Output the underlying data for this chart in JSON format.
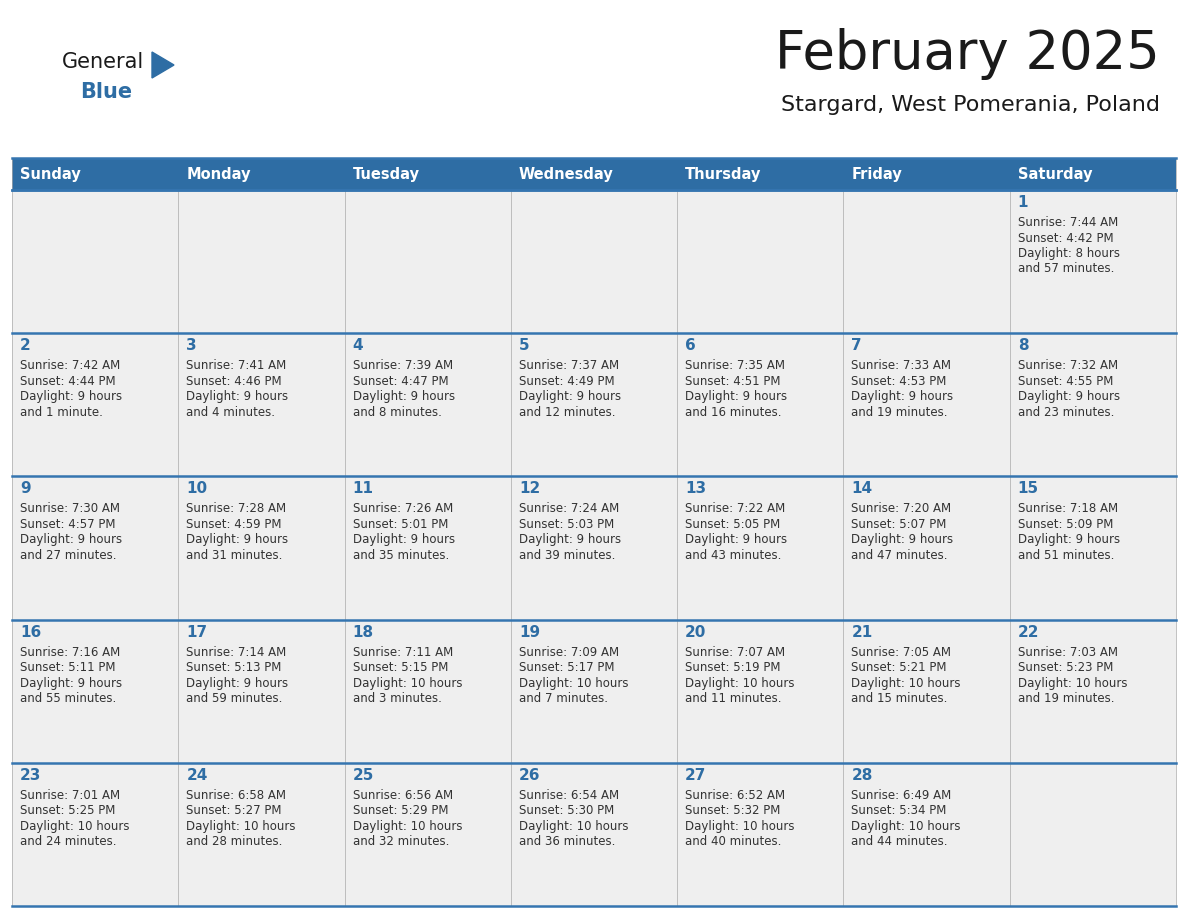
{
  "title": "February 2025",
  "subtitle": "Stargard, West Pomerania, Poland",
  "days_of_week": [
    "Sunday",
    "Monday",
    "Tuesday",
    "Wednesday",
    "Thursday",
    "Friday",
    "Saturday"
  ],
  "header_bg": "#2E6DA4",
  "header_text": "#FFFFFF",
  "cell_bg": "#EFEFEF",
  "cell_border": "#AAAAAA",
  "row_line_color": "#3575B0",
  "day_number_color": "#2E6DA4",
  "text_color": "#333333",
  "title_color": "#1a1a1a",
  "logo_general_color": "#1a1a1a",
  "logo_blue_color": "#2E6DA4",
  "fig_width": 11.88,
  "fig_height": 9.18,
  "dpi": 100,
  "calendar": [
    [
      null,
      null,
      null,
      null,
      null,
      null,
      {
        "day": "1",
        "sunrise": "7:44 AM",
        "sunset": "4:42 PM",
        "daylight": "8 hours",
        "daylight2": "and 57 minutes."
      }
    ],
    [
      {
        "day": "2",
        "sunrise": "7:42 AM",
        "sunset": "4:44 PM",
        "daylight": "9 hours",
        "daylight2": "and 1 minute."
      },
      {
        "day": "3",
        "sunrise": "7:41 AM",
        "sunset": "4:46 PM",
        "daylight": "9 hours",
        "daylight2": "and 4 minutes."
      },
      {
        "day": "4",
        "sunrise": "7:39 AM",
        "sunset": "4:47 PM",
        "daylight": "9 hours",
        "daylight2": "and 8 minutes."
      },
      {
        "day": "5",
        "sunrise": "7:37 AM",
        "sunset": "4:49 PM",
        "daylight": "9 hours",
        "daylight2": "and 12 minutes."
      },
      {
        "day": "6",
        "sunrise": "7:35 AM",
        "sunset": "4:51 PM",
        "daylight": "9 hours",
        "daylight2": "and 16 minutes."
      },
      {
        "day": "7",
        "sunrise": "7:33 AM",
        "sunset": "4:53 PM",
        "daylight": "9 hours",
        "daylight2": "and 19 minutes."
      },
      {
        "day": "8",
        "sunrise": "7:32 AM",
        "sunset": "4:55 PM",
        "daylight": "9 hours",
        "daylight2": "and 23 minutes."
      }
    ],
    [
      {
        "day": "9",
        "sunrise": "7:30 AM",
        "sunset": "4:57 PM",
        "daylight": "9 hours",
        "daylight2": "and 27 minutes."
      },
      {
        "day": "10",
        "sunrise": "7:28 AM",
        "sunset": "4:59 PM",
        "daylight": "9 hours",
        "daylight2": "and 31 minutes."
      },
      {
        "day": "11",
        "sunrise": "7:26 AM",
        "sunset": "5:01 PM",
        "daylight": "9 hours",
        "daylight2": "and 35 minutes."
      },
      {
        "day": "12",
        "sunrise": "7:24 AM",
        "sunset": "5:03 PM",
        "daylight": "9 hours",
        "daylight2": "and 39 minutes."
      },
      {
        "day": "13",
        "sunrise": "7:22 AM",
        "sunset": "5:05 PM",
        "daylight": "9 hours",
        "daylight2": "and 43 minutes."
      },
      {
        "day": "14",
        "sunrise": "7:20 AM",
        "sunset": "5:07 PM",
        "daylight": "9 hours",
        "daylight2": "and 47 minutes."
      },
      {
        "day": "15",
        "sunrise": "7:18 AM",
        "sunset": "5:09 PM",
        "daylight": "9 hours",
        "daylight2": "and 51 minutes."
      }
    ],
    [
      {
        "day": "16",
        "sunrise": "7:16 AM",
        "sunset": "5:11 PM",
        "daylight": "9 hours",
        "daylight2": "and 55 minutes."
      },
      {
        "day": "17",
        "sunrise": "7:14 AM",
        "sunset": "5:13 PM",
        "daylight": "9 hours",
        "daylight2": "and 59 minutes."
      },
      {
        "day": "18",
        "sunrise": "7:11 AM",
        "sunset": "5:15 PM",
        "daylight": "10 hours",
        "daylight2": "and 3 minutes."
      },
      {
        "day": "19",
        "sunrise": "7:09 AM",
        "sunset": "5:17 PM",
        "daylight": "10 hours",
        "daylight2": "and 7 minutes."
      },
      {
        "day": "20",
        "sunrise": "7:07 AM",
        "sunset": "5:19 PM",
        "daylight": "10 hours",
        "daylight2": "and 11 minutes."
      },
      {
        "day": "21",
        "sunrise": "7:05 AM",
        "sunset": "5:21 PM",
        "daylight": "10 hours",
        "daylight2": "and 15 minutes."
      },
      {
        "day": "22",
        "sunrise": "7:03 AM",
        "sunset": "5:23 PM",
        "daylight": "10 hours",
        "daylight2": "and 19 minutes."
      }
    ],
    [
      {
        "day": "23",
        "sunrise": "7:01 AM",
        "sunset": "5:25 PM",
        "daylight": "10 hours",
        "daylight2": "and 24 minutes."
      },
      {
        "day": "24",
        "sunrise": "6:58 AM",
        "sunset": "5:27 PM",
        "daylight": "10 hours",
        "daylight2": "and 28 minutes."
      },
      {
        "day": "25",
        "sunrise": "6:56 AM",
        "sunset": "5:29 PM",
        "daylight": "10 hours",
        "daylight2": "and 32 minutes."
      },
      {
        "day": "26",
        "sunrise": "6:54 AM",
        "sunset": "5:30 PM",
        "daylight": "10 hours",
        "daylight2": "and 36 minutes."
      },
      {
        "day": "27",
        "sunrise": "6:52 AM",
        "sunset": "5:32 PM",
        "daylight": "10 hours",
        "daylight2": "and 40 minutes."
      },
      {
        "day": "28",
        "sunrise": "6:49 AM",
        "sunset": "5:34 PM",
        "daylight": "10 hours",
        "daylight2": "and 44 minutes."
      },
      null
    ]
  ]
}
